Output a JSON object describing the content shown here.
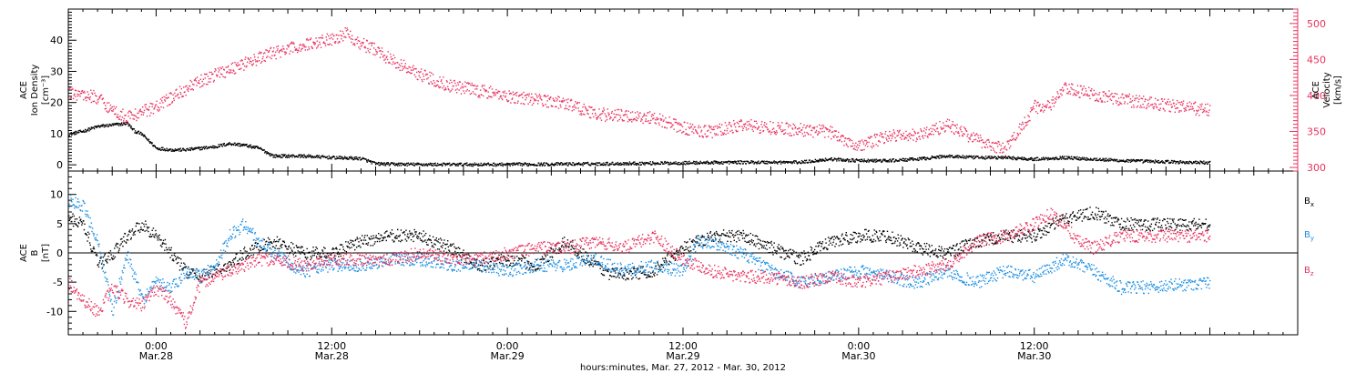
{
  "chart_data": {
    "type": "scatter",
    "xlabel": "hours:minutes, Mar. 27, 2012 - Mar. 30, 2012",
    "x_ticks": [
      {
        "t": 0,
        "time": "0:00",
        "date": "Mar.28"
      },
      {
        "t": 12,
        "time": "12:00",
        "date": "Mar.28"
      },
      {
        "t": 24,
        "time": "0:00",
        "date": "Mar.29"
      },
      {
        "t": 36,
        "time": "12:00",
        "date": "Mar.29"
      },
      {
        "t": 48,
        "time": "0:00",
        "date": "Mar.30"
      },
      {
        "t": 60,
        "time": "12:00",
        "date": "Mar.30"
      }
    ],
    "xlim_hours": [
      -6,
      78
    ],
    "panels": [
      {
        "id": "top",
        "left_axis": {
          "label_lines": [
            "ACE",
            "Ion Density",
            "[cm⁻³]"
          ],
          "ylim": [
            -2,
            50
          ],
          "ticks": [
            0,
            10,
            20,
            30,
            40
          ],
          "color": "#000000"
        },
        "right_axis": {
          "label_lines": [
            "ACE",
            "Velocity",
            "[km/s]"
          ],
          "ylim": [
            295,
            520
          ],
          "ticks": [
            300,
            350,
            400,
            450,
            500
          ],
          "color": "#e8335f"
        },
        "series": [
          {
            "axis": "left",
            "color": "#000000",
            "x": [
              -6,
              -5,
              -4,
              -3,
              -2,
              -1.5,
              -1,
              0,
              1,
              2,
              3,
              4,
              5,
              6,
              7,
              8,
              9,
              10,
              12,
              14,
              15,
              16,
              18,
              20,
              24,
              30,
              36,
              40,
              44,
              46,
              48,
              50,
              52,
              54,
              56,
              58,
              60,
              62,
              66,
              72
            ],
            "y": [
              10,
              11,
              12.5,
              13,
              13.5,
              11,
              10,
              5.5,
              5,
              5,
              5.5,
              6,
              7,
              6.5,
              5.5,
              3,
              3,
              3,
              2.5,
              2.2,
              0.5,
              0.4,
              0.3,
              0.3,
              0.3,
              0.5,
              0.8,
              1,
              1,
              2,
              1.5,
              1.5,
              2,
              3,
              2.5,
              2.5,
              2,
              2.5,
              1.5,
              0.8
            ]
          },
          {
            "axis": "right",
            "color": "#e8335f",
            "x": [
              -6,
              -4,
              -3,
              -2,
              -1,
              0,
              2,
              4,
              6,
              8,
              10,
              12,
              13,
              14,
              15,
              16,
              18,
              20,
              24,
              28,
              30,
              34,
              36,
              38,
              40,
              42,
              44,
              46,
              48,
              50,
              52,
              54,
              55,
              56,
              58,
              60,
              61,
              62,
              66,
              72
            ],
            "y": [
              405,
              398,
              380,
              370,
              378,
              385,
              410,
              430,
              445,
              460,
              470,
              480,
              487,
              472,
              465,
              450,
              430,
              415,
              400,
              390,
              375,
              370,
              355,
              350,
              360,
              356,
              353,
              350,
              330,
              345,
              345,
              360,
              350,
              340,
              325,
              385,
              385,
              410,
              395,
              380
            ]
          }
        ]
      },
      {
        "id": "bottom",
        "left_axis": {
          "label_lines": [
            "ACE",
            "B",
            "[nT]"
          ],
          "ylim": [
            -14,
            14
          ],
          "ticks": [
            -10,
            -5,
            0,
            5,
            10
          ],
          "color": "#000000"
        },
        "zero_line": true,
        "legend": [
          {
            "label": "B",
            "sub": "x",
            "color": "#000000"
          },
          {
            "label": "B",
            "sub": "y",
            "color": "#1a8fe3"
          },
          {
            "label": "B",
            "sub": "z",
            "color": "#e8335f"
          }
        ],
        "series": [
          {
            "name": "Bx",
            "color": "#000000",
            "x": [
              -6,
              -5,
              -4,
              -3,
              -2,
              -1,
              0,
              1,
              2,
              3,
              4,
              5,
              6,
              7,
              8,
              10,
              12,
              14,
              16,
              18,
              20,
              22,
              24,
              26,
              28,
              30,
              31,
              32,
              34,
              36,
              38,
              40,
              42,
              44,
              46,
              48,
              50,
              52,
              54,
              56,
              58,
              60,
              62,
              64,
              66,
              72
            ],
            "y": [
              6,
              5,
              -2,
              0,
              3,
              5,
              3,
              0,
              -3,
              -4,
              -3,
              -2,
              0,
              1,
              2,
              0,
              0,
              2,
              3,
              3,
              1,
              -2,
              -1,
              -2,
              2,
              -2,
              -3.5,
              -3.5,
              -3,
              1,
              3,
              3,
              1,
              -1,
              2,
              3,
              3,
              1,
              0,
              2,
              3,
              3,
              6,
              7,
              5,
              5
            ]
          },
          {
            "name": "By",
            "color": "#1a8fe3",
            "x": [
              -6,
              -5,
              -4,
              -3,
              -2,
              -1,
              0,
              1,
              2,
              3,
              4,
              5,
              6,
              7,
              8,
              10,
              12,
              14,
              16,
              18,
              20,
              22,
              24,
              26,
              28,
              30,
              32,
              34,
              36,
              37,
              38,
              40,
              42,
              44,
              46,
              48,
              50,
              52,
              54,
              56,
              58,
              60,
              62,
              64,
              66,
              72
            ],
            "y": [
              9,
              8,
              2,
              -10,
              0,
              -8,
              -5,
              -6,
              -3,
              -4,
              -2,
              3,
              5,
              2,
              0,
              -3,
              -2,
              -2,
              -1,
              -1,
              -2,
              -2,
              -3,
              -2,
              -2,
              -1,
              -3,
              -2,
              -3,
              2,
              2,
              0,
              -3,
              -5,
              -4,
              -3,
              -4,
              -5,
              -3,
              -5,
              -3,
              -4,
              -1,
              -3,
              -6,
              -5
            ]
          },
          {
            "name": "Bz",
            "color": "#e8335f",
            "x": [
              -6,
              -5,
              -4,
              -3,
              -2,
              -1,
              0,
              1,
              2,
              3,
              4,
              5,
              6,
              7,
              8,
              10,
              12,
              14,
              16,
              18,
              20,
              22,
              24,
              26,
              28,
              30,
              32,
              34,
              36,
              38,
              40,
              42,
              44,
              46,
              48,
              50,
              52,
              54,
              56,
              58,
              60,
              61,
              62,
              63,
              64,
              66,
              72
            ],
            "y": [
              -5,
              -8,
              -10,
              -6,
              -8,
              -9,
              -6,
              -8,
              -12,
              -5,
              -4,
              -3,
              -2,
              -1,
              -1,
              -2,
              -1,
              -1,
              -1,
              0,
              -1,
              -1,
              0,
              1,
              1,
              2,
              1,
              3,
              -1,
              -3,
              -4,
              -4,
              -5,
              -4,
              -5,
              -4,
              -3,
              -2,
              2,
              3,
              5,
              7,
              5,
              2,
              1,
              3,
              3
            ]
          }
        ]
      }
    ]
  }
}
